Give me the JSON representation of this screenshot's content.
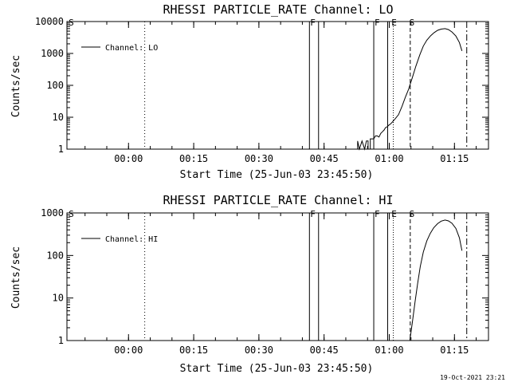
{
  "footer": {
    "timestamp": "19-Oct-2021 23:21"
  },
  "chart_data": [
    {
      "type": "line",
      "title": "RHESSI PARTICLE_RATE Channel: LO",
      "xlabel": "Start Time (25-Jun-03 23:45:50)",
      "ylabel": "Counts/sec",
      "yscale": "log",
      "ylim": [
        1,
        10000
      ],
      "xlim_minutes_after_start": [
        0,
        97
      ],
      "x_ticks": [
        "00:00",
        "00:15",
        "00:30",
        "00:45",
        "01:00",
        "01:15"
      ],
      "y_ticks": [
        "1",
        "10",
        "100",
        "1000",
        "10000"
      ],
      "legend": {
        "placement": "top-left",
        "entries": [
          "Channel: LO"
        ]
      },
      "flag_labels": [
        {
          "text": "S",
          "t": 0.2
        },
        {
          "text": "F",
          "t": 55.8
        },
        {
          "text": "F",
          "t": 70.6
        },
        {
          "text": "E",
          "t": 74.5
        },
        {
          "text": "S",
          "t": 78.6
        }
      ],
      "series": [
        {
          "name": "Channel: LO",
          "points": [
            [
              66.9,
              1.0
            ],
            [
              66.9,
              1.8
            ],
            [
              67.3,
              1.0
            ],
            [
              67.9,
              1.8
            ],
            [
              68.5,
              1.0
            ],
            [
              68.9,
              1.8
            ],
            [
              69.3,
              1.8
            ],
            [
              69.3,
              1.0
            ],
            [
              69.8,
              1.0
            ],
            [
              69.8,
              2.1
            ],
            [
              70.6,
              2.1
            ],
            [
              71.0,
              2.6
            ],
            [
              71.4,
              2.6
            ],
            [
              71.8,
              2.4
            ],
            [
              72.2,
              3.1
            ],
            [
              72.6,
              3.5
            ],
            [
              73.0,
              4.0
            ],
            [
              73.3,
              4.7
            ],
            [
              73.7,
              5.0
            ],
            [
              74.1,
              5.7
            ],
            [
              74.5,
              6.2
            ],
            [
              75.4,
              8.5
            ],
            [
              76.3,
              12
            ],
            [
              77.1,
              22
            ],
            [
              77.8,
              40
            ],
            [
              78.6,
              75
            ],
            [
              79.5,
              180
            ],
            [
              80.3,
              400
            ],
            [
              81.2,
              900
            ],
            [
              82.0,
              1700
            ],
            [
              82.8,
              2600
            ],
            [
              83.7,
              3600
            ],
            [
              84.5,
              4500
            ],
            [
              85.3,
              5300
            ],
            [
              86.1,
              5800
            ],
            [
              87.0,
              6000
            ],
            [
              87.8,
              5600
            ],
            [
              88.6,
              4700
            ],
            [
              89.5,
              3500
            ],
            [
              90.3,
              2200
            ],
            [
              90.9,
              1200
            ]
          ]
        }
      ]
    },
    {
      "type": "line",
      "title": "RHESSI PARTICLE_RATE Channel: HI",
      "xlabel": "Start Time (25-Jun-03 23:45:50)",
      "ylabel": "Counts/sec",
      "yscale": "log",
      "ylim": [
        1,
        1000
      ],
      "xlim_minutes_after_start": [
        0,
        97
      ],
      "x_ticks": [
        "00:00",
        "00:15",
        "00:30",
        "00:45",
        "01:00",
        "01:15"
      ],
      "y_ticks": [
        "1",
        "10",
        "100",
        "1000"
      ],
      "legend": {
        "placement": "top-left",
        "entries": [
          "Channel: HI"
        ]
      },
      "flag_labels": [
        {
          "text": "S",
          "t": 0.2
        },
        {
          "text": "F",
          "t": 55.8
        },
        {
          "text": "F",
          "t": 70.6
        },
        {
          "text": "E",
          "t": 74.5
        },
        {
          "text": "S",
          "t": 78.6
        }
      ],
      "series": [
        {
          "name": "Channel: HI",
          "points": [
            [
              78.9,
              1.0
            ],
            [
              79.5,
              2.8
            ],
            [
              80.1,
              8
            ],
            [
              80.7,
              22
            ],
            [
              81.3,
              55
            ],
            [
              82.0,
              120
            ],
            [
              82.8,
              220
            ],
            [
              83.6,
              330
            ],
            [
              84.4,
              450
            ],
            [
              85.3,
              560
            ],
            [
              86.1,
              640
            ],
            [
              87.0,
              680
            ],
            [
              87.8,
              650
            ],
            [
              88.6,
              570
            ],
            [
              89.5,
              430
            ],
            [
              90.3,
              260
            ],
            [
              90.9,
              130
            ]
          ]
        }
      ]
    }
  ]
}
